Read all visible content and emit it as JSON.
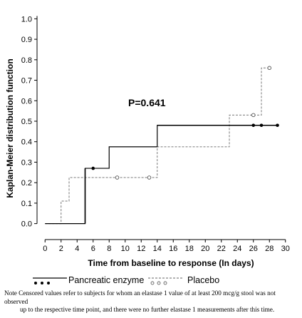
{
  "chart_data": {
    "type": "line",
    "subtype": "step",
    "title": "",
    "xlabel": "Time from baseline to response (In days)",
    "ylabel": "Kaplan-Meier distribution function",
    "xlim": [
      -1,
      31
    ],
    "ylim": [
      -0.05,
      1.05
    ],
    "xticks": [
      0,
      2,
      4,
      6,
      8,
      10,
      12,
      14,
      16,
      18,
      20,
      22,
      24,
      26,
      28,
      30
    ],
    "yticks": [
      0.0,
      0.1,
      0.2,
      0.3,
      0.4,
      0.5,
      0.6,
      0.7,
      0.8,
      0.9,
      1.0
    ],
    "grid": false,
    "annotation": "P=0.641",
    "series": [
      {
        "name": "Pancreatic enzyme",
        "line_style": "solid",
        "color": "#000000",
        "steps": [
          [
            0,
            0.0
          ],
          [
            5,
            0.27
          ],
          [
            8,
            0.375
          ],
          [
            14,
            0.48
          ],
          [
            29,
            0.48
          ]
        ],
        "censored": [
          [
            6,
            0.27
          ],
          [
            26,
            0.48
          ],
          [
            27,
            0.48
          ],
          [
            29,
            0.48
          ]
        ]
      },
      {
        "name": "Placebo",
        "line_style": "dashed",
        "color": "#777777",
        "steps": [
          [
            0,
            0.0
          ],
          [
            2,
            0.11
          ],
          [
            3,
            0.225
          ],
          [
            14,
            0.375
          ],
          [
            23,
            0.53
          ],
          [
            27,
            0.76
          ],
          [
            28,
            0.76
          ]
        ],
        "censored": [
          [
            9,
            0.225
          ],
          [
            13,
            0.225
          ],
          [
            26,
            0.53
          ],
          [
            28,
            0.76
          ]
        ]
      }
    ]
  },
  "legend": {
    "items": [
      {
        "label": "Pancreatic enzyme"
      },
      {
        "label": "Placebo"
      }
    ]
  },
  "note": {
    "line1": "Note Censored values refer to subjects for whom an elastase 1 value of at least 200 mcg/g stool was not observed",
    "line2": "up to the respective time point, and there were no further elastase 1 measurements after this time."
  }
}
